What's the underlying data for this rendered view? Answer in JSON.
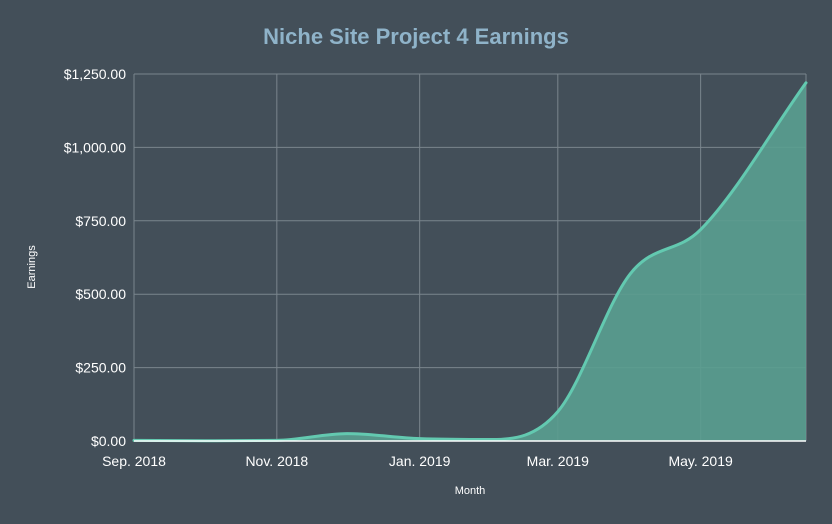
{
  "colors": {
    "background": "#434f59",
    "title": "#8fb3c9",
    "grid": "#7a858d",
    "line": "#63c9b0",
    "fill": "#5a9e90"
  },
  "chart_data": {
    "type": "area",
    "title": "Niche Site Project 4 Earnings",
    "xlabel": "Month",
    "ylabel": "Earnings",
    "grid": true,
    "legend": "none",
    "x_ticks": [
      "Sep. 2018",
      "Nov. 2018",
      "Jan. 2019",
      "Mar. 2019",
      "May. 2019"
    ],
    "y_ticks": [
      "$0.00",
      "$250.00",
      "$500.00",
      "$750.00",
      "$1,000.00",
      "$1,250.00"
    ],
    "ylim": [
      0,
      1250
    ],
    "xlim": [
      "2018-09-01",
      "2019-06-15"
    ],
    "series": [
      {
        "x": [
          "2018-09-01",
          "2018-10-01",
          "2018-11-01",
          "2018-12-01",
          "2019-01-01",
          "2019-02-01",
          "2019-03-01",
          "2019-04-01",
          "2019-05-01",
          "2019-06-15"
        ],
        "values": [
          2,
          1,
          2,
          25,
          8,
          5,
          100,
          570,
          720,
          1220
        ]
      }
    ]
  }
}
